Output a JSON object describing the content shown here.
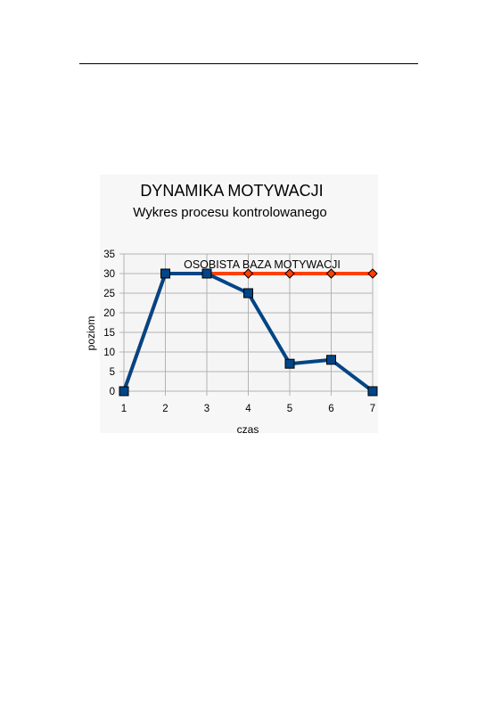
{
  "chart_data": {
    "type": "line",
    "title": "DYNAMIKA MOTYWACJI",
    "subtitle": "Wykres procesu kontrolowanego",
    "annotation": "OSOBISTA BAZA MOTYWACJI",
    "xlabel": "czas",
    "ylabel": "poziom",
    "x": [
      1,
      2,
      3,
      4,
      5,
      6,
      7
    ],
    "x_tick_labels": [
      "1",
      "2",
      "3",
      "4",
      "5",
      "6",
      "7"
    ],
    "y_tick_labels": [
      "0",
      "5",
      "10",
      "15",
      "20",
      "25",
      "30",
      "35"
    ],
    "ylim": [
      0,
      35
    ],
    "grid": true,
    "legend": "none",
    "series": [
      {
        "values": [
          0,
          30,
          30,
          30,
          30,
          30,
          30
        ],
        "color": "#ff4000",
        "marker": "diamond"
      },
      {
        "values": [
          0,
          30,
          30,
          25,
          7,
          8,
          0
        ],
        "color": "#004586",
        "marker": "square"
      }
    ],
    "plot_background": "#f5f5f5",
    "grid_color": "#b3b3b3"
  }
}
